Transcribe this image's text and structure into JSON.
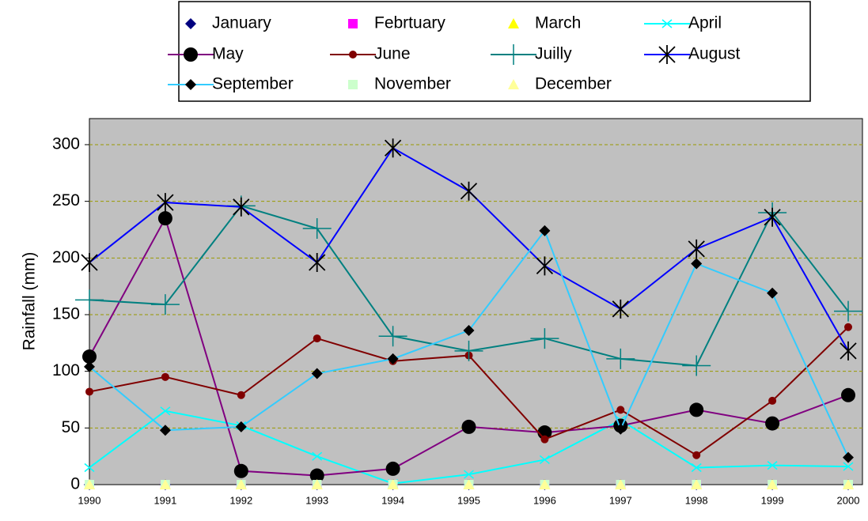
{
  "chart_data": {
    "type": "line",
    "y_label": "Rainfall (mm)",
    "x": [
      1990,
      1991,
      1992,
      1993,
      1994,
      1995,
      1996,
      1997,
      1998,
      1999,
      2000
    ],
    "xlim": [
      1990,
      2000
    ],
    "ylim": [
      0,
      323
    ],
    "yticks": [
      0,
      50,
      100,
      150,
      200,
      250,
      300
    ],
    "grid": true,
    "series": [
      {
        "name": "January",
        "color": "#000080",
        "marker": "diamond",
        "line": false,
        "values": [
          0,
          0,
          0,
          0,
          0,
          0,
          0,
          0,
          0,
          0,
          0
        ]
      },
      {
        "name": "Febrtuary",
        "color": "#ff00ff",
        "marker": "square",
        "line": false,
        "values": [
          0,
          0,
          0,
          0,
          0,
          0,
          0,
          0,
          0,
          0,
          0
        ]
      },
      {
        "name": "March",
        "color": "#ffff00",
        "marker": "triangle",
        "line": false,
        "values": [
          0,
          0,
          0,
          0,
          0,
          0,
          0,
          0,
          0,
          0,
          0
        ]
      },
      {
        "name": "April",
        "color": "#00ffff",
        "marker": "x",
        "marker_color": "#00ffff",
        "line": true,
        "values": [
          15,
          65,
          52,
          25,
          1,
          9,
          22,
          57,
          15,
          17,
          16
        ]
      },
      {
        "name": "May",
        "color": "#800080",
        "marker": "circle",
        "marker_color": "#000000",
        "line": true,
        "values": [
          113,
          235,
          12,
          8,
          14,
          51,
          46,
          52,
          66,
          54,
          79
        ]
      },
      {
        "name": "June",
        "color": "#800000",
        "marker": "dot",
        "marker_color": "#800000",
        "line": true,
        "values": [
          82,
          95,
          79,
          129,
          109,
          114,
          40,
          66,
          26,
          74,
          139
        ]
      },
      {
        "name": "Juilly",
        "color": "#008080",
        "marker": "plus",
        "marker_color": "#008080",
        "line": true,
        "values": [
          163,
          159,
          246,
          226,
          131,
          118,
          129,
          111,
          105,
          240,
          153
        ]
      },
      {
        "name": "August",
        "color": "#0000ff",
        "marker": "star",
        "marker_color": "#000000",
        "line": true,
        "values": [
          196,
          249,
          245,
          196,
          297,
          259,
          193,
          155,
          208,
          236,
          118
        ]
      },
      {
        "name": "September",
        "color": "#33ccff",
        "marker": "diamond",
        "marker_color": "#000000",
        "line": true,
        "values": [
          104,
          48,
          51,
          98,
          111,
          136,
          224,
          49,
          195,
          169,
          24
        ]
      },
      {
        "name": "November",
        "color": "#ccffcc",
        "marker": "square",
        "line": false,
        "values": [
          0,
          0,
          0,
          0,
          0,
          0,
          0,
          0,
          0,
          0,
          0
        ]
      },
      {
        "name": "December",
        "color": "#ffff99",
        "marker": "triangle",
        "line": false,
        "values": [
          0,
          0,
          0,
          0,
          0,
          0,
          0,
          0,
          0,
          0,
          0
        ]
      }
    ]
  }
}
